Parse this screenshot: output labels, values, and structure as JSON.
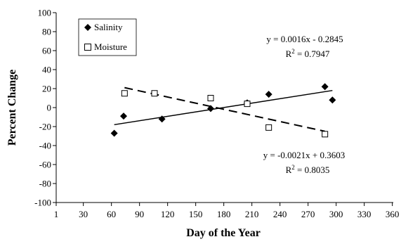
{
  "chart_data": {
    "type": "scatter",
    "xlabel": "Day of the Year",
    "ylabel": "Percent Change",
    "xlim": [
      1,
      361
    ],
    "ylim": [
      -100,
      100
    ],
    "x_ticks": [
      "1",
      "30",
      "60",
      "90",
      "120",
      "150",
      "180",
      "210",
      "240",
      "270",
      "300",
      "330",
      "360"
    ],
    "y_ticks": [
      "100",
      "80",
      "60",
      "40",
      "20",
      "0",
      "-20",
      "-40",
      "-60",
      "-80",
      "-100"
    ],
    "grid": false,
    "legend_position": "top-left",
    "series": [
      {
        "name": "Salinity",
        "marker": "filled-diamond",
        "color": "#000000",
        "points": [
          {
            "x": 63,
            "y": -27
          },
          {
            "x": 73,
            "y": -9
          },
          {
            "x": 114,
            "y": -12
          },
          {
            "x": 166,
            "y": -1
          },
          {
            "x": 205,
            "y": 5
          },
          {
            "x": 228,
            "y": 14
          },
          {
            "x": 288,
            "y": 22
          },
          {
            "x": 296,
            "y": 8
          }
        ],
        "trendline": {
          "style": "solid",
          "x_range": [
            63,
            296
          ],
          "y_range": [
            -18,
            18
          ],
          "equation": "y = 0.0016x - 0.2845",
          "r2_value": " = 0.7947"
        }
      },
      {
        "name": "Moisture",
        "marker": "open-square",
        "color": "#000000",
        "points": [
          {
            "x": 74,
            "y": 15
          },
          {
            "x": 106,
            "y": 15
          },
          {
            "x": 166,
            "y": 10
          },
          {
            "x": 205,
            "y": 4
          },
          {
            "x": 228,
            "y": -21
          },
          {
            "x": 288,
            "y": -28
          }
        ],
        "trendline": {
          "style": "dashed",
          "x_range": [
            74,
            288
          ],
          "y_range": [
            21,
            -25
          ],
          "equation": "y = -0.0021x + 0.3603",
          "r2_value": " = 0.8035"
        }
      }
    ],
    "r2_label": "R",
    "r2_superscript": "2"
  }
}
